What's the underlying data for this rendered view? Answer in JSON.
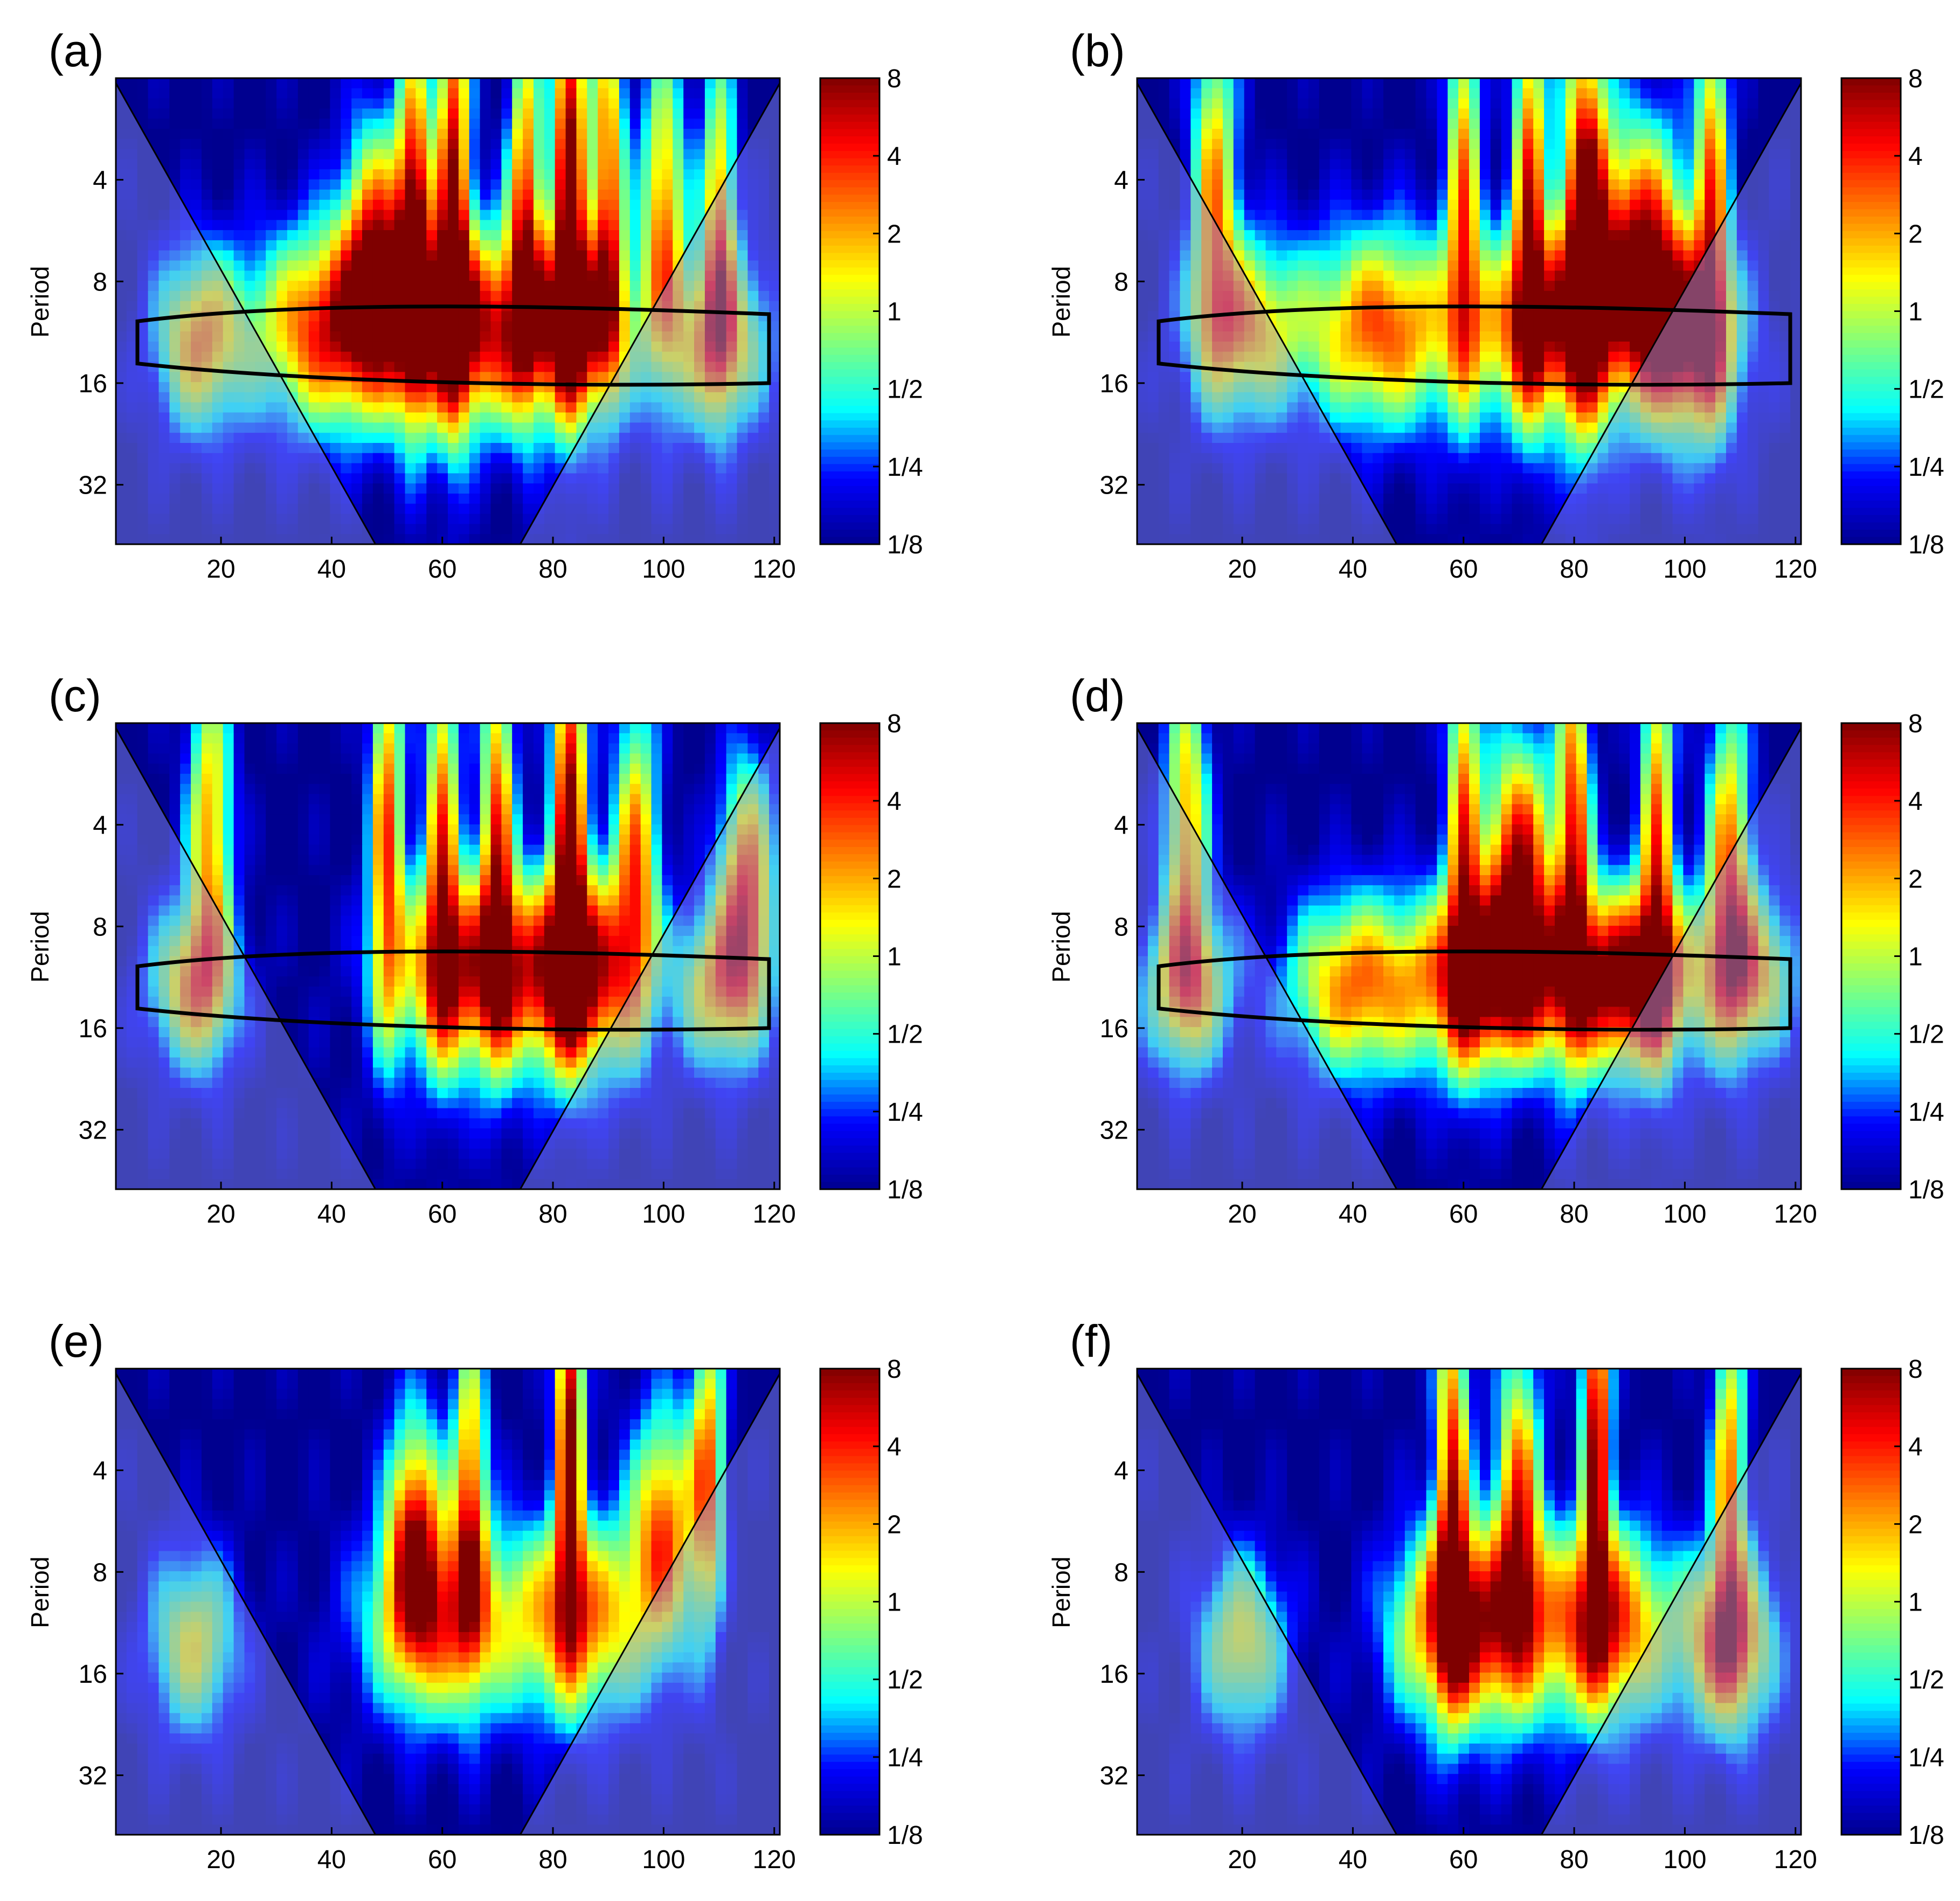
{
  "colors": {
    "cmap": [
      "#00008f",
      "#0000ff",
      "#00ffff",
      "#7fff7f",
      "#ffff00",
      "#ff7f00",
      "#ff0000",
      "#7f0000"
    ],
    "coi_shade": "#8f97e6",
    "contour": "#000000"
  },
  "colorbar": {
    "ticks": [
      "8",
      "4",
      "2",
      "1",
      "1/2",
      "1/4",
      "1/8"
    ],
    "scale": "log2"
  },
  "chart_data": [
    {
      "type": "heatmap",
      "panel_label": "(a)",
      "ylabel": "Period",
      "x_ticks": [
        "20",
        "40",
        "60",
        "80",
        "100",
        "120"
      ],
      "y_ticks": [
        "4",
        "8",
        "16",
        "32"
      ],
      "xlim": [
        1,
        121
      ],
      "ylim": [
        2,
        48
      ],
      "y_scale": "log2",
      "features": [
        {
          "x": 16,
          "p": 12,
          "sx": 8,
          "sy": 0.22,
          "a": 1.0
        },
        {
          "x": 40,
          "p": 11,
          "sx": 14,
          "sy": 0.24,
          "a": 2.2
        },
        {
          "x": 65,
          "p": 11,
          "sx": 14,
          "sy": 0.24,
          "a": 2.5
        },
        {
          "x": 85,
          "p": 11,
          "sx": 10,
          "sy": 0.22,
          "a": 1.8
        },
        {
          "x": 110,
          "p": 12,
          "sx": 9,
          "sy": 0.22,
          "a": 1.0
        },
        {
          "x": 55,
          "p": 5,
          "sx": 3,
          "sy": 0.45,
          "a": 2.2
        },
        {
          "x": 62,
          "p": 4,
          "sx": 3,
          "sy": 0.55,
          "a": 2.6
        },
        {
          "x": 75,
          "p": 4.5,
          "sx": 3,
          "sy": 0.45,
          "a": 1.6
        },
        {
          "x": 83,
          "p": 3.5,
          "sx": 3,
          "sy": 0.55,
          "a": 3.2
        },
        {
          "x": 90,
          "p": 4,
          "sx": 3,
          "sy": 0.45,
          "a": 1.6
        },
        {
          "x": 100,
          "p": 5,
          "sx": 4,
          "sy": 0.4,
          "a": 1.2
        },
        {
          "x": 110,
          "p": 5,
          "sx": 3,
          "sy": 0.4,
          "a": 1.0
        },
        {
          "x": 48,
          "p": 6,
          "sx": 6,
          "sy": 0.3,
          "a": 1.2
        }
      ]
    },
    {
      "type": "heatmap",
      "panel_label": "(b)",
      "ylabel": "Period",
      "x_ticks": [
        "20",
        "40",
        "60",
        "80",
        "100",
        "120"
      ],
      "y_ticks": [
        "4",
        "8",
        "16",
        "32"
      ],
      "xlim": [
        1,
        121
      ],
      "ylim": [
        2,
        48
      ],
      "y_scale": "log2",
      "features": [
        {
          "x": 20,
          "p": 11,
          "sx": 10,
          "sy": 0.22,
          "a": 0.9
        },
        {
          "x": 45,
          "p": 11,
          "sx": 14,
          "sy": 0.24,
          "a": 1.6
        },
        {
          "x": 75,
          "p": 11,
          "sx": 14,
          "sy": 0.24,
          "a": 2.0
        },
        {
          "x": 100,
          "p": 12,
          "sx": 10,
          "sy": 0.24,
          "a": 2.6
        },
        {
          "x": 15,
          "p": 4,
          "sx": 4,
          "sy": 0.4,
          "a": 1.0
        },
        {
          "x": 60,
          "p": 4,
          "sx": 3,
          "sy": 0.5,
          "a": 1.2
        },
        {
          "x": 72,
          "p": 4,
          "sx": 3,
          "sy": 0.5,
          "a": 1.8
        },
        {
          "x": 82,
          "p": 5,
          "sx": 4,
          "sy": 0.5,
          "a": 3.0
        },
        {
          "x": 92,
          "p": 6,
          "sx": 8,
          "sy": 0.3,
          "a": 2.0
        },
        {
          "x": 105,
          "p": 4,
          "sx": 3,
          "sy": 0.5,
          "a": 1.2
        }
      ]
    },
    {
      "type": "heatmap",
      "panel_label": "(c)",
      "ylabel": "Period",
      "x_ticks": [
        "20",
        "40",
        "60",
        "80",
        "100",
        "120"
      ],
      "y_ticks": [
        "4",
        "8",
        "16",
        "32"
      ],
      "xlim": [
        1,
        121
      ],
      "ylim": [
        2,
        48
      ],
      "y_scale": "log2",
      "features": [
        {
          "x": 15,
          "p": 12,
          "sx": 8,
          "sy": 0.2,
          "a": 0.9
        },
        {
          "x": 65,
          "p": 11,
          "sx": 14,
          "sy": 0.24,
          "a": 2.2
        },
        {
          "x": 85,
          "p": 11,
          "sx": 10,
          "sy": 0.24,
          "a": 3.0
        },
        {
          "x": 110,
          "p": 12,
          "sx": 8,
          "sy": 0.2,
          "a": 0.8
        },
        {
          "x": 18,
          "p": 4,
          "sx": 4,
          "sy": 0.4,
          "a": 1.0
        },
        {
          "x": 50,
          "p": 4,
          "sx": 3,
          "sy": 0.5,
          "a": 1.6
        },
        {
          "x": 60,
          "p": 4,
          "sx": 3,
          "sy": 0.5,
          "a": 1.4
        },
        {
          "x": 70,
          "p": 4,
          "sx": 3,
          "sy": 0.5,
          "a": 1.6
        },
        {
          "x": 83,
          "p": 3.5,
          "sx": 3,
          "sy": 0.5,
          "a": 3.0
        },
        {
          "x": 95,
          "p": 5,
          "sx": 4,
          "sy": 0.4,
          "a": 1.2
        },
        {
          "x": 115,
          "p": 6,
          "sx": 5,
          "sy": 0.3,
          "a": 1.6
        }
      ]
    },
    {
      "type": "heatmap",
      "panel_label": "(d)",
      "ylabel": "Period",
      "x_ticks": [
        "20",
        "40",
        "60",
        "80",
        "100",
        "120"
      ],
      "y_ticks": [
        "4",
        "8",
        "16",
        "32"
      ],
      "xlim": [
        1,
        121
      ],
      "ylim": [
        2,
        48
      ],
      "y_scale": "log2",
      "features": [
        {
          "x": 10,
          "p": 12,
          "sx": 8,
          "sy": 0.2,
          "a": 0.9
        },
        {
          "x": 40,
          "p": 12,
          "sx": 12,
          "sy": 0.22,
          "a": 1.2
        },
        {
          "x": 65,
          "p": 11.5,
          "sx": 14,
          "sy": 0.22,
          "a": 3.2
        },
        {
          "x": 90,
          "p": 11.5,
          "sx": 12,
          "sy": 0.22,
          "a": 3.4
        },
        {
          "x": 112,
          "p": 11,
          "sx": 8,
          "sy": 0.2,
          "a": 0.9
        },
        {
          "x": 10,
          "p": 4,
          "sx": 4,
          "sy": 0.4,
          "a": 1.0
        },
        {
          "x": 60,
          "p": 4,
          "sx": 3,
          "sy": 0.5,
          "a": 1.4
        },
        {
          "x": 70,
          "p": 5,
          "sx": 6,
          "sy": 0.3,
          "a": 2.2
        },
        {
          "x": 80,
          "p": 4,
          "sx": 3,
          "sy": 0.5,
          "a": 1.8
        },
        {
          "x": 95,
          "p": 4,
          "sx": 3,
          "sy": 0.5,
          "a": 1.4
        },
        {
          "x": 108,
          "p": 5,
          "sx": 4,
          "sy": 0.4,
          "a": 1.2
        }
      ]
    },
    {
      "type": "heatmap",
      "panel_label": "(e)",
      "ylabel": "Period",
      "x_ticks": [
        "20",
        "40",
        "60",
        "80",
        "100",
        "120"
      ],
      "y_ticks": [
        "4",
        "8",
        "16",
        "32"
      ],
      "xlim": [
        1,
        121
      ],
      "ylim": [
        2,
        48
      ],
      "y_scale": "log2",
      "features": [
        {
          "x": 15,
          "p": 13,
          "sx": 8,
          "sy": 0.22,
          "a": 0.4
        },
        {
          "x": 60,
          "p": 11,
          "sx": 14,
          "sy": 0.24,
          "a": 1.2
        },
        {
          "x": 85,
          "p": 11,
          "sx": 12,
          "sy": 0.24,
          "a": 1.4
        },
        {
          "x": 55,
          "p": 6,
          "sx": 5,
          "sy": 0.3,
          "a": 1.6
        },
        {
          "x": 65,
          "p": 4.5,
          "sx": 3,
          "sy": 0.4,
          "a": 1.4
        },
        {
          "x": 83,
          "p": 3,
          "sx": 2.5,
          "sy": 0.45,
          "a": 3.2
        },
        {
          "x": 108,
          "p": 4,
          "sx": 3,
          "sy": 0.4,
          "a": 1.2
        },
        {
          "x": 100,
          "p": 6,
          "sx": 6,
          "sy": 0.3,
          "a": 1.4
        }
      ]
    },
    {
      "type": "heatmap",
      "panel_label": "(f)",
      "ylabel": "Period",
      "x_ticks": [
        "20",
        "40",
        "60",
        "80",
        "100",
        "120"
      ],
      "y_ticks": [
        "4",
        "8",
        "16",
        "32"
      ],
      "xlim": [
        1,
        121
      ],
      "ylim": [
        2,
        48
      ],
      "y_scale": "log2",
      "features": [
        {
          "x": 20,
          "p": 13,
          "sx": 8,
          "sy": 0.22,
          "a": 0.4
        },
        {
          "x": 60,
          "p": 11.5,
          "sx": 12,
          "sy": 0.24,
          "a": 3.0
        },
        {
          "x": 85,
          "p": 11.5,
          "sx": 12,
          "sy": 0.24,
          "a": 2.4
        },
        {
          "x": 108,
          "p": 13,
          "sx": 8,
          "sy": 0.22,
          "a": 2.0
        },
        {
          "x": 58,
          "p": 4,
          "sx": 3,
          "sy": 0.5,
          "a": 2.0
        },
        {
          "x": 70,
          "p": 5,
          "sx": 4,
          "sy": 0.4,
          "a": 1.6
        },
        {
          "x": 84,
          "p": 3,
          "sx": 2.5,
          "sy": 0.45,
          "a": 3.0
        },
        {
          "x": 108,
          "p": 4,
          "sx": 3,
          "sy": 0.4,
          "a": 1.2
        }
      ]
    }
  ]
}
